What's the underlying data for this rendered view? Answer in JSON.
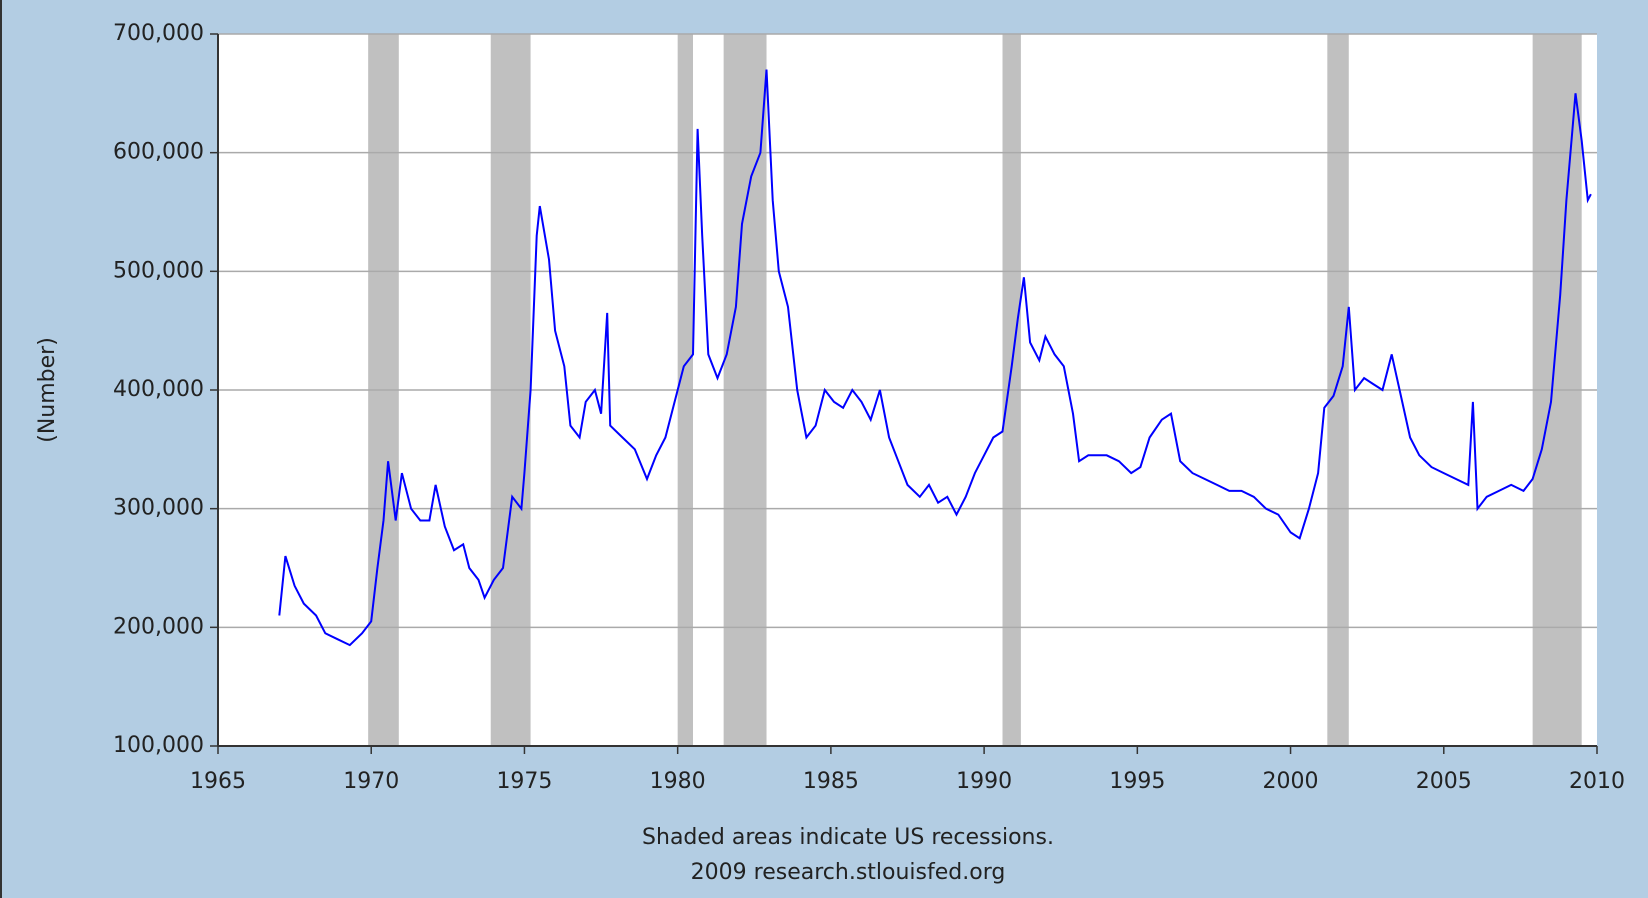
{
  "chart_data": {
    "type": "line",
    "ylabel": "(Number)",
    "notes": [
      "Shaded areas indicate US recessions.",
      "2009 research.stlouisfed.org"
    ],
    "x": [
      1967.0,
      1967.2,
      1967.5,
      1967.8,
      1968.2,
      1968.5,
      1968.9,
      1969.3,
      1969.7,
      1970.0,
      1970.2,
      1970.4,
      1970.55,
      1970.8,
      1971.0,
      1971.3,
      1971.6,
      1971.9,
      1972.1,
      1972.4,
      1972.7,
      1973.0,
      1973.2,
      1973.5,
      1973.7,
      1974.0,
      1974.3,
      1974.6,
      1974.9,
      1975.0,
      1975.2,
      1975.4,
      1975.5,
      1975.8,
      1976.0,
      1976.3,
      1976.5,
      1976.8,
      1977.0,
      1977.3,
      1977.5,
      1977.7,
      1977.8,
      1978.2,
      1978.6,
      1979.0,
      1979.3,
      1979.6,
      1979.9,
      1980.2,
      1980.5,
      1980.65,
      1980.8,
      1981.0,
      1981.3,
      1981.6,
      1981.9,
      1982.1,
      1982.4,
      1982.7,
      1982.9,
      1983.1,
      1983.3,
      1983.6,
      1983.9,
      1984.2,
      1984.5,
      1984.8,
      1985.1,
      1985.4,
      1985.7,
      1986.0,
      1986.3,
      1986.6,
      1986.9,
      1987.2,
      1987.5,
      1987.9,
      1988.2,
      1988.5,
      1988.8,
      1989.1,
      1989.4,
      1989.7,
      1990.0,
      1990.3,
      1990.6,
      1990.9,
      1991.1,
      1991.3,
      1991.5,
      1991.8,
      1992.0,
      1992.3,
      1992.6,
      1992.9,
      1993.1,
      1993.4,
      1993.7,
      1994.0,
      1994.4,
      1994.8,
      1995.1,
      1995.4,
      1995.8,
      1996.1,
      1996.4,
      1996.8,
      1997.2,
      1997.6,
      1998.0,
      1998.4,
      1998.8,
      1999.2,
      1999.6,
      2000.0,
      2000.3,
      2000.6,
      2000.9,
      2001.1,
      2001.4,
      2001.7,
      2001.9,
      2002.1,
      2002.4,
      2002.7,
      2003.0,
      2003.3,
      2003.6,
      2003.9,
      2004.2,
      2004.6,
      2005.0,
      2005.4,
      2005.8,
      2005.95,
      2006.1,
      2006.4,
      2006.8,
      2007.2,
      2007.6,
      2007.9,
      2008.2,
      2008.5,
      2008.8,
      2009.0,
      2009.2,
      2009.3,
      2009.5,
      2009.7,
      2009.8
    ],
    "series": [
      {
        "color": "#0000ff",
        "values": [
          210000,
          260000,
          235000,
          220000,
          210000,
          195000,
          190000,
          185000,
          195000,
          205000,
          250000,
          290000,
          340000,
          290000,
          330000,
          300000,
          290000,
          290000,
          320000,
          285000,
          265000,
          270000,
          250000,
          240000,
          225000,
          240000,
          250000,
          310000,
          300000,
          330000,
          400000,
          530000,
          555000,
          510000,
          450000,
          420000,
          370000,
          360000,
          390000,
          400000,
          380000,
          465000,
          370000,
          360000,
          350000,
          325000,
          345000,
          360000,
          390000,
          420000,
          430000,
          620000,
          530000,
          430000,
          410000,
          430000,
          470000,
          540000,
          580000,
          600000,
          670000,
          560000,
          500000,
          470000,
          400000,
          360000,
          370000,
          400000,
          390000,
          385000,
          400000,
          390000,
          375000,
          400000,
          360000,
          340000,
          320000,
          310000,
          320000,
          305000,
          310000,
          295000,
          310000,
          330000,
          345000,
          360000,
          365000,
          420000,
          460000,
          495000,
          440000,
          425000,
          445000,
          430000,
          420000,
          380000,
          340000,
          345000,
          345000,
          345000,
          340000,
          330000,
          335000,
          360000,
          375000,
          380000,
          340000,
          330000,
          325000,
          320000,
          315000,
          315000,
          310000,
          300000,
          295000,
          280000,
          275000,
          300000,
          330000,
          385000,
          395000,
          420000,
          470000,
          400000,
          410000,
          405000,
          400000,
          430000,
          395000,
          360000,
          345000,
          335000,
          330000,
          325000,
          320000,
          390000,
          300000,
          310000,
          315000,
          320000,
          315000,
          325000,
          350000,
          390000,
          480000,
          560000,
          620000,
          650000,
          610000,
          560000,
          565000
        ]
      }
    ],
    "recessions": [
      [
        1969.9,
        1970.9
      ],
      [
        1973.9,
        1975.2
      ],
      [
        1980.0,
        1980.5
      ],
      [
        1981.5,
        1982.9
      ],
      [
        1990.6,
        1991.2
      ],
      [
        2001.2,
        2001.9
      ],
      [
        2007.9,
        2009.5
      ]
    ],
    "recession_color": "#c0c0c0",
    "xlim": [
      1965,
      2010
    ],
    "xticks": [
      1965,
      1970,
      1975,
      1980,
      1985,
      1990,
      1995,
      2000,
      2005,
      2010
    ],
    "ylim": [
      100000,
      700000
    ],
    "yticks": [
      {
        "value": 100000,
        "label": "100,000"
      },
      {
        "value": 200000,
        "label": "200,000"
      },
      {
        "value": 300000,
        "label": "300,000"
      },
      {
        "value": 400000,
        "label": "400,000"
      },
      {
        "value": 500000,
        "label": "500,000"
      },
      {
        "value": 600000,
        "label": "600,000"
      },
      {
        "value": 700000,
        "label": "700,000"
      }
    ],
    "grid": true
  }
}
